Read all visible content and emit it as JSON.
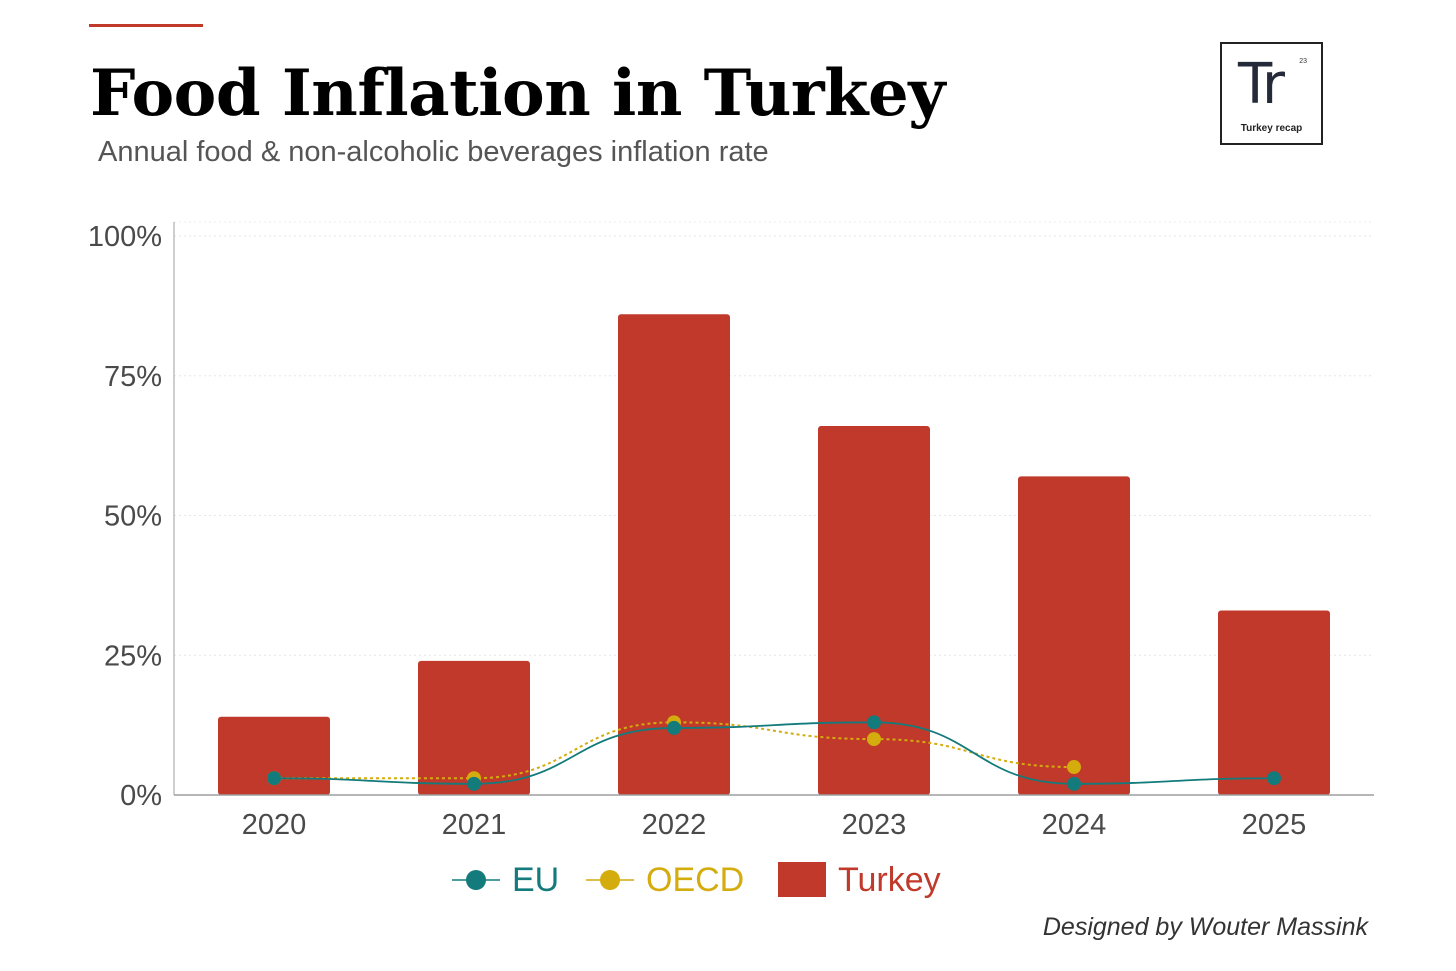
{
  "header": {
    "title": "Food Inflation in Turkey",
    "subtitle": "Annual food & non-alcoholic beverages inflation rate"
  },
  "logo": {
    "mark": "Tr",
    "number": "23",
    "caption": "Turkey recap"
  },
  "credit": "Designed by Wouter Massink",
  "colors": {
    "turkey": "#c0392b",
    "eu": "#137b7b",
    "oecd": "#d4ac0d",
    "accent": "#c0392b"
  },
  "chart_data": {
    "type": "bar",
    "title": "Food Inflation in Turkey",
    "subtitle": "Annual food & non-alcoholic beverages inflation rate",
    "xlabel": "",
    "ylabel": "",
    "categories": [
      "2020",
      "2021",
      "2022",
      "2023",
      "2024",
      "2025"
    ],
    "ylim": [
      0,
      100
    ],
    "yticks": [
      0,
      25,
      50,
      75,
      100
    ],
    "ytick_labels": [
      "0%",
      "25%",
      "50%",
      "75%",
      "100%"
    ],
    "grid": true,
    "series": [
      {
        "name": "Turkey",
        "type": "bar",
        "color": "#c0392b",
        "values": [
          14,
          24,
          86,
          66,
          57,
          33
        ]
      },
      {
        "name": "EU",
        "type": "line",
        "color": "#137b7b",
        "values": [
          3,
          2,
          12,
          13,
          2,
          3
        ]
      },
      {
        "name": "OECD",
        "type": "line",
        "color": "#d4ac0d",
        "values": [
          3,
          3,
          13,
          10,
          5,
          null
        ]
      }
    ],
    "legend": {
      "placement": "bottom-center",
      "entries": [
        {
          "label": "EU",
          "color": "#137b7b",
          "kind": "line"
        },
        {
          "label": "OECD",
          "color": "#d4ac0d",
          "kind": "line"
        },
        {
          "label": "Turkey",
          "color": "#c0392b",
          "kind": "bar"
        }
      ]
    }
  }
}
